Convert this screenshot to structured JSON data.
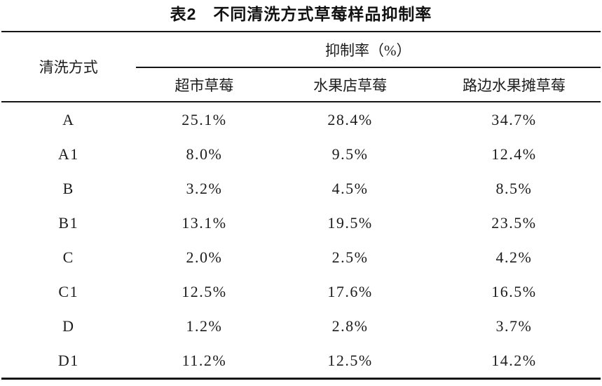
{
  "title": "表2　不同清洗方式草莓样品抑制率",
  "table": {
    "col1_header": "清洗方式",
    "group_header": "抑制率（%）",
    "sub_headers": [
      "超市草莓",
      "水果店草莓",
      "路边水果摊草莓"
    ],
    "rows": [
      {
        "method": "A",
        "values": [
          "25.1%",
          "28.4%",
          "34.7%"
        ]
      },
      {
        "method": "A1",
        "values": [
          "8.0%",
          "9.5%",
          "12.4%"
        ]
      },
      {
        "method": "B",
        "values": [
          "3.2%",
          "4.5%",
          "8.5%"
        ]
      },
      {
        "method": "B1",
        "values": [
          "13.1%",
          "19.5%",
          "23.5%"
        ]
      },
      {
        "method": "C",
        "values": [
          "2.0%",
          "2.5%",
          "4.2%"
        ]
      },
      {
        "method": "C1",
        "values": [
          "12.5%",
          "17.6%",
          "16.5%"
        ]
      },
      {
        "method": "D",
        "values": [
          "1.2%",
          "2.8%",
          "3.7%"
        ]
      },
      {
        "method": "D1",
        "values": [
          "11.2%",
          "12.5%",
          "14.2%"
        ]
      }
    ]
  },
  "colors": {
    "text": "#1c1c1c",
    "rule": "#151515",
    "background": "#ffffff"
  }
}
